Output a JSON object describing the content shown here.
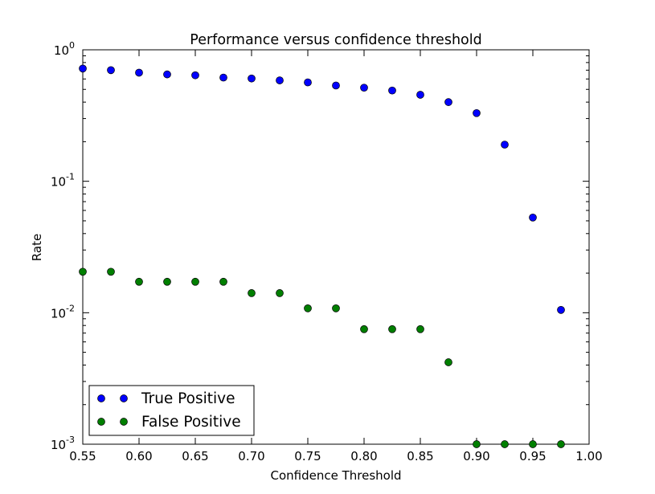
{
  "chart_data": {
    "type": "scatter",
    "title": "Performance versus confidence threshold",
    "xlabel": "Confidence Threshold",
    "ylabel": "Rate",
    "xlim": [
      0.55,
      1.0
    ],
    "ylim": [
      0.001,
      1.0
    ],
    "yscale": "log",
    "grid": false,
    "legend_position": "lower-left",
    "x_ticks": [
      "0.55",
      "0.60",
      "0.65",
      "0.70",
      "0.75",
      "0.80",
      "0.85",
      "0.90",
      "0.95",
      "1.00"
    ],
    "y_ticks": [
      {
        "value": 1.0,
        "base": "10",
        "exp": "0"
      },
      {
        "value": 0.1,
        "base": "10",
        "exp": "-1"
      },
      {
        "value": 0.01,
        "base": "10",
        "exp": "-2"
      },
      {
        "value": 0.001,
        "base": "10",
        "exp": "-3"
      }
    ],
    "series": [
      {
        "name": "True Positive",
        "color": "#0000ff",
        "x": [
          0.55,
          0.575,
          0.6,
          0.625,
          0.65,
          0.675,
          0.7,
          0.725,
          0.75,
          0.775,
          0.8,
          0.825,
          0.85,
          0.875,
          0.9,
          0.925,
          0.95,
          0.975
        ],
        "y": [
          0.72,
          0.7,
          0.67,
          0.65,
          0.64,
          0.615,
          0.605,
          0.585,
          0.565,
          0.535,
          0.515,
          0.49,
          0.455,
          0.4,
          0.33,
          0.19,
          0.053,
          0.0105
        ]
      },
      {
        "name": "False Positive",
        "color": "#007f00",
        "x": [
          0.55,
          0.575,
          0.6,
          0.625,
          0.65,
          0.675,
          0.7,
          0.725,
          0.75,
          0.775,
          0.8,
          0.825,
          0.85,
          0.875,
          0.9,
          0.925,
          0.95,
          0.975
        ],
        "y": [
          0.0205,
          0.0205,
          0.0172,
          0.0172,
          0.0172,
          0.0172,
          0.0141,
          0.0141,
          0.0108,
          0.0108,
          0.0075,
          0.0075,
          0.0075,
          0.0042,
          0.001,
          0.001,
          0.001,
          0.001
        ]
      }
    ]
  }
}
